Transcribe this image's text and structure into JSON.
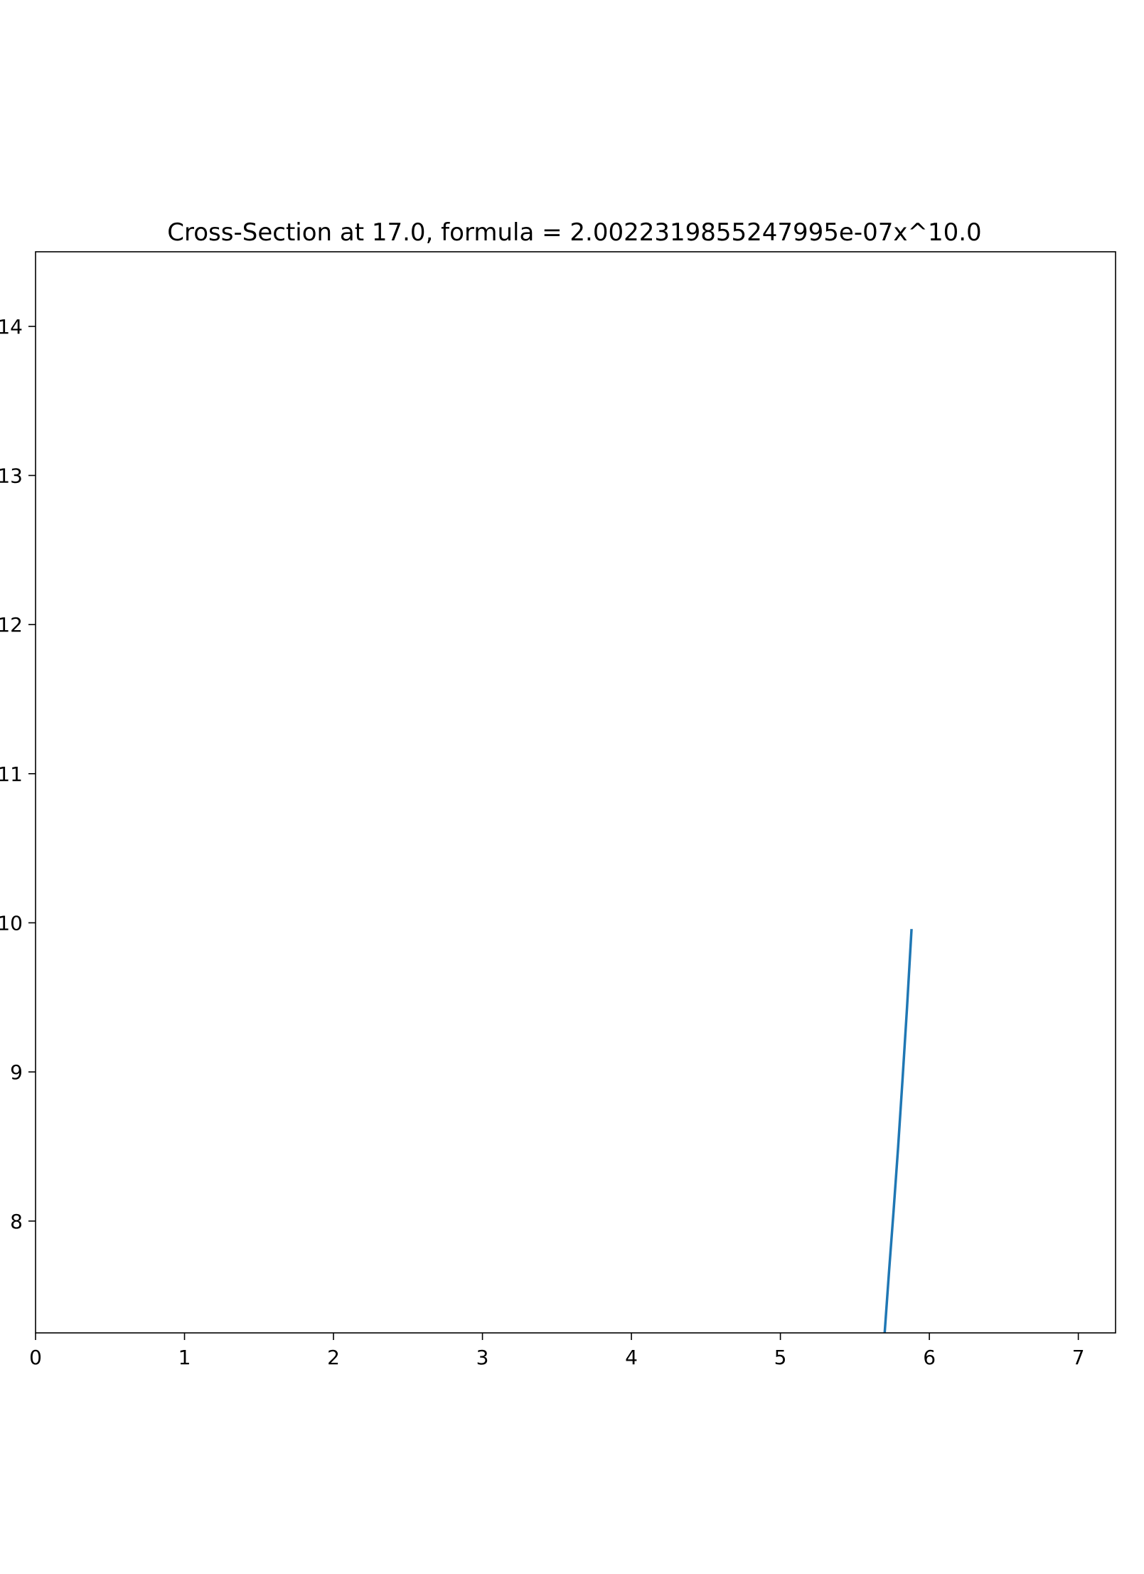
{
  "chart_data": {
    "type": "line",
    "title": "Cross-Section at 17.0, formula = 2.0022319855247995e-07x^10.0",
    "xlabel": "",
    "ylabel": "",
    "xlim": [
      0,
      7.25
    ],
    "ylim": [
      7.25,
      14.5
    ],
    "xticks": [
      "0",
      "1",
      "2",
      "3",
      "4",
      "5",
      "6",
      "7"
    ],
    "yticks": [
      "8",
      "9",
      "10",
      "11",
      "12",
      "13",
      "14"
    ],
    "grid": false,
    "series": [
      {
        "color": "#1f77b4",
        "x": [
          5.7,
          5.73,
          5.76,
          5.79,
          5.82,
          5.85,
          5.88
        ],
        "y": [
          7.25,
          7.67,
          8.07,
          8.49,
          8.95,
          9.43,
          9.95
        ]
      }
    ]
  }
}
